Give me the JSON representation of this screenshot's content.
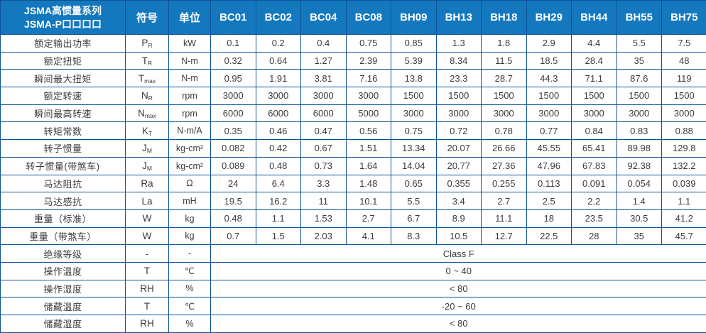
{
  "table": {
    "title_line1": "JSMA高惯量系列",
    "title_line2": "JSMA-P口口口口",
    "columns": {
      "symbol": "符号",
      "unit": "单位"
    },
    "models": [
      "BC01",
      "BC02",
      "BC04",
      "BC08",
      "BH09",
      "BH13",
      "BH18",
      "BH29",
      "BH44",
      "BH55",
      "BH75"
    ],
    "rows": [
      {
        "label": "额定输出功率",
        "symbol": "P",
        "sub": "R",
        "unit": "kW",
        "values": [
          "0.1",
          "0.2",
          "0.4",
          "0.75",
          "0.85",
          "1.3",
          "1.8",
          "2.9",
          "4.4",
          "5.5",
          "7.5"
        ]
      },
      {
        "label": "额定扭矩",
        "symbol": "T",
        "sub": "R",
        "unit": "N-m",
        "values": [
          "0.32",
          "0.64",
          "1.27",
          "2.39",
          "5.39",
          "8.34",
          "11.5",
          "18.5",
          "28.4",
          "35",
          "48"
        ]
      },
      {
        "label": "瞬间最大扭矩",
        "symbol": "T",
        "sub": "max",
        "unit": "N-m",
        "values": [
          "0.95",
          "1.91",
          "3.81",
          "7.16",
          "13.8",
          "23.3",
          "28.7",
          "44.3",
          "71.1",
          "87.6",
          "119"
        ]
      },
      {
        "label": "额定转速",
        "symbol": "N",
        "sub": "R",
        "unit": "rpm",
        "values": [
          "3000",
          "3000",
          "3000",
          "3000",
          "1500",
          "1500",
          "1500",
          "1500",
          "1500",
          "1500",
          "1500"
        ]
      },
      {
        "label": "瞬间最高转速",
        "symbol": "N",
        "sub": "max",
        "unit": "rpm",
        "values": [
          "6000",
          "6000",
          "6000",
          "5000",
          "3000",
          "3000",
          "3000",
          "3000",
          "3000",
          "3000",
          "3000"
        ]
      },
      {
        "label": "转矩常数",
        "symbol": "K",
        "sub": "T",
        "unit": "N-m/A",
        "values": [
          "0.35",
          "0.46",
          "0.47",
          "0.56",
          "0.75",
          "0.72",
          "0.78",
          "0.77",
          "0.84",
          "0.83",
          "0.88"
        ]
      },
      {
        "label": "转子惯量",
        "symbol": "J",
        "sub": "M",
        "unit": "kg-cm²",
        "values": [
          "0.082",
          "0.42",
          "0.67",
          "1.51",
          "13.34",
          "20.07",
          "26.66",
          "45.55",
          "65.41",
          "89.98",
          "129.8"
        ]
      },
      {
        "label": "转子惯量(带煞车)",
        "symbol": "J",
        "sub": "M",
        "unit": "kg-cm²",
        "values": [
          "0.089",
          "0.48",
          "0.73",
          "1.64",
          "14.04",
          "20.77",
          "27.36",
          "47.96",
          "67.83",
          "92.38",
          "132.2"
        ]
      },
      {
        "label": "马达阻抗",
        "symbol": "Ra",
        "sub": "",
        "unit": "Ω",
        "values": [
          "24",
          "6.4",
          "3.3",
          "1.48",
          "0.65",
          "0.355",
          "0.255",
          "0.113",
          "0.091",
          "0.054",
          "0.039"
        ]
      },
      {
        "label": "马达感抗",
        "symbol": "La",
        "sub": "",
        "unit": "mH",
        "values": [
          "19.5",
          "16.2",
          "11",
          "10.1",
          "5.5",
          "3.4",
          "2.7",
          "2.5",
          "2.2",
          "1.4",
          "1.1"
        ]
      },
      {
        "label": "重量（标准）",
        "symbol": "W",
        "sub": "",
        "unit": "kg",
        "values": [
          "0.48",
          "1.1",
          "1.53",
          "2.7",
          "6.7",
          "8.9",
          "11.1",
          "18",
          "23.5",
          "30.5",
          "41.2"
        ]
      },
      {
        "label": "重量（带煞车）",
        "symbol": "W",
        "sub": "",
        "unit": "kg",
        "values": [
          "0.7",
          "1.5",
          "2.03",
          "4.1",
          "8.3",
          "10.5",
          "12.7",
          "22.5",
          "28",
          "35",
          "45.7"
        ]
      },
      {
        "label": "绝缘等级",
        "symbol": "-",
        "sub": "",
        "unit": "-",
        "merged": "Class F"
      },
      {
        "label": "操作温度",
        "symbol": "T",
        "sub": "",
        "unit": "℃",
        "merged": "0 ~ 40"
      },
      {
        "label": "操作湿度",
        "symbol": "RH",
        "sub": "",
        "unit": "%",
        "merged": "< 80"
      },
      {
        "label": "储藏温度",
        "symbol": "T",
        "sub": "",
        "unit": "℃",
        "merged": "-20 ~ 60"
      },
      {
        "label": "储藏湿度",
        "symbol": "RH",
        "sub": "",
        "unit": "%",
        "merged": "< 80"
      }
    ]
  },
  "colors": {
    "header_bg": "#1478BE",
    "header_divider": "#0D66A8",
    "border": "#0E5296",
    "header_text": "#FFFFFF",
    "body_text": "#3B3B3B",
    "body_bg": "#FFFFFF"
  }
}
